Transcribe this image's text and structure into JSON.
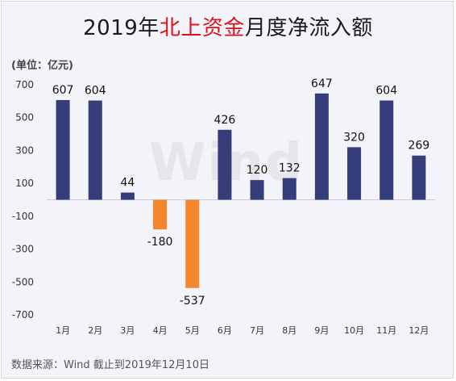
{
  "title": {
    "part1": "2019年",
    "highlight": "北上资金",
    "part2": "月度净流入额"
  },
  "unit_label": "(单位：亿元)",
  "watermark": "Wind",
  "source": "数据来源：Wind  截止到2019年12月10日",
  "colors": {
    "positive": "#353e7b",
    "negative": "#f5862e",
    "title_highlight": "#e0101a"
  },
  "chart_data": {
    "type": "bar",
    "categories": [
      "1月",
      "2月",
      "3月",
      "4月",
      "5月",
      "6月",
      "7月",
      "8月",
      "9月",
      "10月",
      "11月",
      "12月"
    ],
    "values": [
      607,
      604,
      44,
      -180,
      -537,
      426,
      120,
      132,
      647,
      320,
      604,
      269
    ],
    "data_labels": [
      "607",
      "604",
      "44",
      "-180",
      "-537",
      "426",
      "120",
      "132",
      "647",
      "320",
      "604",
      "269"
    ],
    "yticks": [
      700,
      500,
      300,
      100,
      -100,
      -300,
      -500,
      -700
    ],
    "ylim": [
      -700,
      700
    ],
    "grid": false
  }
}
